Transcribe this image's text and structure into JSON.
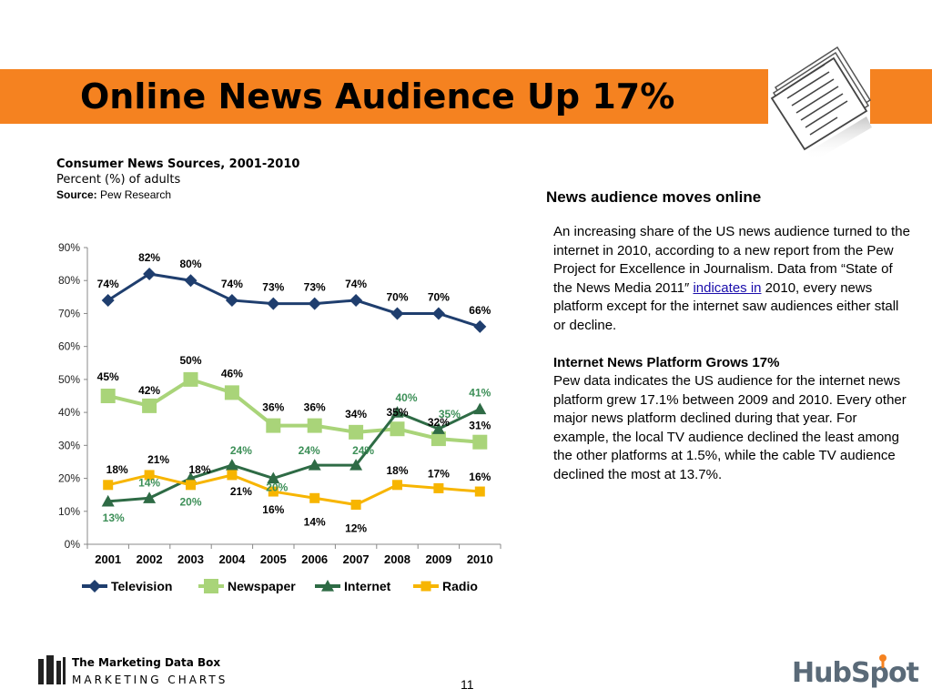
{
  "slide": {
    "title": "Online News Audience Up 17%",
    "page_number": "11",
    "brand_color": "#f58220",
    "icon": "newspaper-icon"
  },
  "source_block": {
    "title": "Consumer News Sources, 2001-2010",
    "subtitle": "Percent (%) of adults",
    "source_label": "Source:",
    "source_value": "Pew Research"
  },
  "right_panel": {
    "heading": "News audience moves online",
    "para1_before": "An increasing share of the US news audience turned to the internet in 2010, according to a new report from the Pew Project for Excellence in Journalism. Data from “State of the News Media 2011″ ",
    "para1_link": "indicates in",
    "para1_after": " 2010, every news platform except for the internet saw audiences either stall or decline.",
    "subheading": "Internet News Platform Grows 17%",
    "para2": "Pew data indicates the US audience for the internet news platform grew 17.1% between 2009 and 2010. Every other major news platform declined during that year. For example, the local TV audience declined the least among the other platforms at 1.5%, while the cable TV audience declined the most at 13.7%."
  },
  "footer": {
    "logo_name": "The Marketing Data Box",
    "logo_sub": "MARKETING CHARTS",
    "hubspot_logo": "HubSpot"
  },
  "chart_data": {
    "type": "line",
    "title": "",
    "xlabel": "",
    "ylabel": "",
    "x": [
      "2001",
      "2002",
      "2003",
      "2004",
      "2005",
      "2006",
      "2007",
      "2008",
      "2009",
      "2010"
    ],
    "ylim": [
      0,
      90
    ],
    "yticks": [
      "0%",
      "10%",
      "20%",
      "30%",
      "40%",
      "50%",
      "60%",
      "70%",
      "80%",
      "90%"
    ],
    "grid": false,
    "legend_position": "bottom",
    "series": [
      {
        "name": "Television",
        "color": "#1f3e6e",
        "marker": "diamond",
        "label_color": "#000000",
        "values": [
          74,
          82,
          80,
          74,
          73,
          73,
          74,
          70,
          70,
          66
        ],
        "labels": [
          "74%",
          "82%",
          "80%",
          "74%",
          "73%",
          "73%",
          "74%",
          "70%",
          "70%",
          "66%"
        ]
      },
      {
        "name": "Newspaper",
        "color": "#a9d479",
        "marker": "square",
        "label_color": "#000000",
        "values": [
          45,
          42,
          50,
          46,
          36,
          36,
          34,
          35,
          32,
          31
        ],
        "labels": [
          "45%",
          "42%",
          "50%",
          "46%",
          "36%",
          "36%",
          "34%",
          "35%",
          "32%",
          "31%"
        ]
      },
      {
        "name": "Internet",
        "color": "#2e6b45",
        "marker": "triangle",
        "label_color": "#3c8f57",
        "values": [
          13,
          14,
          20,
          24,
          20,
          24,
          24,
          40,
          35,
          41
        ],
        "labels": [
          "13%",
          "14%",
          "20%",
          "24%",
          "20%",
          "24%",
          "24%",
          "40%",
          "35%",
          "41%"
        ]
      },
      {
        "name": "Radio",
        "color": "#f7b500",
        "marker": "square",
        "label_color": "#000000",
        "values": [
          18,
          21,
          18,
          21,
          16,
          14,
          12,
          18,
          17,
          16
        ],
        "labels": [
          "18%",
          "21%",
          "18%",
          "21%",
          "16%",
          "14%",
          "12%",
          "18%",
          "17%",
          "16%"
        ]
      }
    ]
  }
}
